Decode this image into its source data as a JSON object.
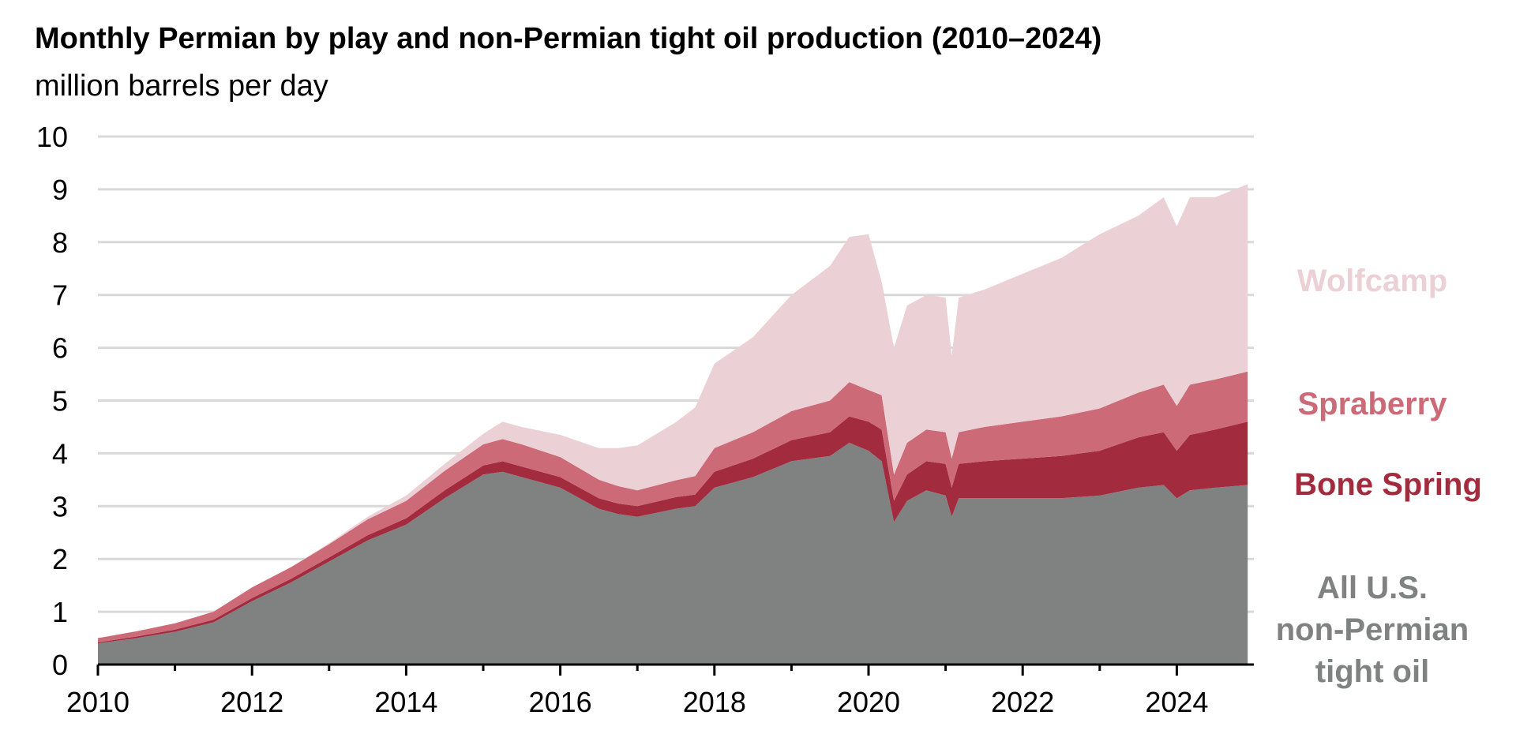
{
  "title": "Monthly Permian by play and non-Permian tight oil production (2010–2024)",
  "subtitle": "million barrels per day",
  "chart_data": {
    "type": "area",
    "stacked": true,
    "title": "Monthly Permian by play and non-Permian tight oil production (2010–2024)",
    "subtitle": "million barrels per day",
    "xlabel": "",
    "ylabel": "million barrels per day",
    "xlim": [
      2010,
      2025
    ],
    "ylim": [
      0,
      10
    ],
    "x_ticks": [
      "2010",
      "2012",
      "2014",
      "2016",
      "2018",
      "2020",
      "2022",
      "2024"
    ],
    "y_ticks": [
      "0",
      "1",
      "2",
      "3",
      "4",
      "5",
      "6",
      "7",
      "8",
      "9",
      "10"
    ],
    "grid": true,
    "legend": "direct labels at right",
    "x": [
      2010.0,
      2010.5,
      2011.0,
      2011.5,
      2012.0,
      2012.5,
      2013.0,
      2013.5,
      2014.0,
      2014.5,
      2015.0,
      2015.25,
      2015.5,
      2016.0,
      2016.5,
      2016.75,
      2017.0,
      2017.5,
      2017.75,
      2018.0,
      2018.5,
      2019.0,
      2019.5,
      2019.75,
      2020.0,
      2020.17,
      2020.33,
      2020.5,
      2020.75,
      2021.0,
      2021.08,
      2021.17,
      2021.5,
      2022.0,
      2022.5,
      2023.0,
      2023.5,
      2023.83,
      2024.0,
      2024.17,
      2024.5,
      2024.92
    ],
    "series": [
      {
        "name": "All U.S. non-Permian tight oil",
        "color": "#7f8281",
        "values": [
          0.4,
          0.5,
          0.62,
          0.8,
          1.2,
          1.55,
          1.95,
          2.35,
          2.65,
          3.15,
          3.6,
          3.65,
          3.55,
          3.35,
          2.95,
          2.85,
          2.8,
          2.95,
          3.0,
          3.35,
          3.55,
          3.85,
          3.95,
          4.2,
          4.05,
          3.85,
          2.7,
          3.1,
          3.3,
          3.2,
          2.8,
          3.15,
          3.15,
          3.15,
          3.15,
          3.2,
          3.35,
          3.4,
          3.15,
          3.3,
          3.35,
          3.4
        ]
      },
      {
        "name": "Bone Spring",
        "color": "#a22b3e",
        "values": [
          0.02,
          0.03,
          0.04,
          0.05,
          0.06,
          0.07,
          0.08,
          0.1,
          0.12,
          0.15,
          0.17,
          0.2,
          0.2,
          0.2,
          0.2,
          0.2,
          0.2,
          0.22,
          0.22,
          0.3,
          0.35,
          0.4,
          0.45,
          0.5,
          0.55,
          0.6,
          0.4,
          0.5,
          0.55,
          0.6,
          0.55,
          0.65,
          0.7,
          0.75,
          0.8,
          0.85,
          0.95,
          1.0,
          0.9,
          1.05,
          1.1,
          1.2
        ]
      },
      {
        "name": "Spraberry",
        "color": "#cc6a78",
        "values": [
          0.08,
          0.1,
          0.12,
          0.15,
          0.2,
          0.22,
          0.25,
          0.3,
          0.33,
          0.37,
          0.4,
          0.42,
          0.42,
          0.38,
          0.35,
          0.33,
          0.3,
          0.32,
          0.35,
          0.45,
          0.5,
          0.55,
          0.6,
          0.65,
          0.6,
          0.65,
          0.5,
          0.6,
          0.6,
          0.6,
          0.55,
          0.6,
          0.65,
          0.7,
          0.75,
          0.8,
          0.85,
          0.9,
          0.85,
          0.95,
          0.95,
          0.95
        ]
      },
      {
        "name": "Wolfcamp",
        "color": "#ebd1d6",
        "values": [
          0.0,
          0.0,
          0.0,
          0.0,
          0.0,
          0.0,
          0.02,
          0.05,
          0.1,
          0.13,
          0.2,
          0.33,
          0.33,
          0.42,
          0.6,
          0.72,
          0.85,
          1.1,
          1.3,
          1.6,
          1.8,
          2.2,
          2.55,
          2.75,
          2.95,
          2.15,
          2.4,
          2.6,
          2.55,
          2.55,
          1.95,
          2.55,
          2.6,
          2.8,
          3.0,
          3.3,
          3.35,
          3.55,
          3.4,
          3.55,
          3.45,
          3.55
        ]
      }
    ],
    "labels": [
      {
        "text": "Wolfcamp",
        "color": "#ebd1d6"
      },
      {
        "text": "Spraberry",
        "color": "#cc6a78"
      },
      {
        "text": "Bone Spring",
        "color": "#a22b3e"
      },
      {
        "text_lines": [
          "All U.S.",
          "non-Permian",
          "tight oil"
        ],
        "color": "#7f8281"
      }
    ]
  }
}
